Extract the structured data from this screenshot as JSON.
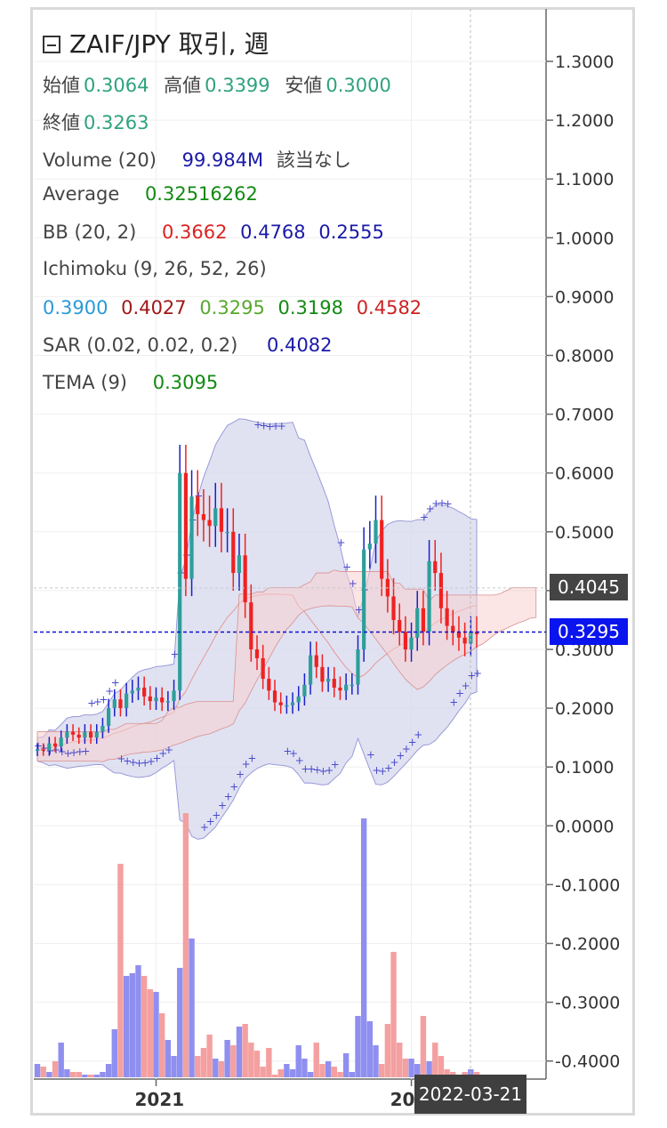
{
  "header": {
    "title": "ZAIF/JPY 取引, 週",
    "open_label": "始値",
    "open": "0.3064",
    "high_label": "高値",
    "high": "0.3399",
    "low_label": "安値",
    "low": "0.3000",
    "close_label": "終値",
    "close": "0.3263"
  },
  "indicators": {
    "volume": {
      "label": "Volume (20)",
      "value": "99.984M",
      "note": "該当なし"
    },
    "average": {
      "label": "Average",
      "value": "0.32516262"
    },
    "bb": {
      "label": "BB (20, 2)",
      "v1": "0.3662",
      "v2": "0.4768",
      "v3": "0.2555"
    },
    "ichimoku": {
      "label": "Ichimoku (9, 26, 52, 26)",
      "v1": "0.3900",
      "v2": "0.4027",
      "v3": "0.3295",
      "v4": "0.3198",
      "v5": "0.4582"
    },
    "sar": {
      "label": "SAR (0.02, 0.02, 0.2)",
      "value": "0.4082"
    },
    "tema": {
      "label": "TEMA (9)",
      "value": "0.3095"
    }
  },
  "colors": {
    "up": "#2e9e9a",
    "down": "#ee2222",
    "bb_fill": "#d6d8ee",
    "sar": "#4a4acc",
    "vol_up": "#8f8ff0",
    "vol_down": "#f4a0a0",
    "cloud_red": "#f7d0d0",
    "cloud_green": "#cfe9cf",
    "last_price_bg": "#0a14ee",
    "ref_price_bg": "#444444",
    "green_text": "#1f9a5a",
    "red_text": "#dd2222",
    "blue_text": "#1a1aa8"
  },
  "tags": {
    "last_price": "0.3295",
    "ref_price": "0.4045",
    "cursor_date": "2022-03-21"
  },
  "chart_data": {
    "type": "candlestick",
    "y_ticks": [
      "1.3000",
      "1.2000",
      "1.1000",
      "1.0000",
      "0.9000",
      "0.8000",
      "0.7000",
      "0.6000",
      "0.5000",
      "0.4000",
      "0.3000",
      "0.2000",
      "0.1000",
      "0.0000",
      "-0.1000",
      "-0.2000",
      "-0.3000",
      "-0.4000"
    ],
    "ylim": [
      -0.43,
      1.33
    ],
    "x_labels": [
      "2021",
      "20"
    ],
    "x_label_weeks": [
      20,
      63
    ],
    "weeks": 75,
    "close": [
      0.13,
      0.128,
      0.14,
      0.135,
      0.15,
      0.16,
      0.155,
      0.15,
      0.16,
      0.15,
      0.16,
      0.17,
      0.2,
      0.215,
      0.2,
      0.225,
      0.23,
      0.235,
      0.22,
      0.212,
      0.218,
      0.21,
      0.212,
      0.23,
      0.6,
      0.42,
      0.56,
      0.53,
      0.52,
      0.51,
      0.54,
      0.5,
      0.5,
      0.43,
      0.46,
      0.38,
      0.3,
      0.285,
      0.25,
      0.23,
      0.21,
      0.205,
      0.205,
      0.21,
      0.22,
      0.24,
      0.29,
      0.27,
      0.245,
      0.25,
      0.235,
      0.23,
      0.24,
      0.24,
      0.3,
      0.47,
      0.48,
      0.52,
      0.42,
      0.39,
      0.35,
      0.33,
      0.3,
      0.32,
      0.37,
      0.33,
      0.45,
      0.43,
      0.37,
      0.34,
      0.33,
      0.32,
      0.31,
      0.33,
      0.326
    ],
    "volume_relative": [
      0.05,
      0.04,
      0.02,
      0.06,
      0.13,
      0.03,
      0.02,
      0.02,
      0.01,
      0.01,
      0.01,
      0.02,
      0.05,
      0.18,
      0.8,
      0.38,
      0.39,
      0.42,
      0.38,
      0.33,
      0.32,
      0.24,
      0.14,
      0.08,
      0.41,
      0.99,
      0.52,
      0.08,
      0.11,
      0.16,
      0.07,
      0.06,
      0.14,
      0.12,
      0.19,
      0.2,
      0.13,
      0.1,
      0.04,
      0.11,
      0.01,
      0.03,
      0.05,
      0.03,
      0.12,
      0.07,
      0.02,
      0.13,
      0.05,
      0.06,
      0.04,
      0.02,
      0.09,
      0.02,
      0.23,
      0.97,
      0.21,
      0.12,
      0.05,
      0.2,
      0.47,
      0.13,
      0.07,
      0.07,
      0.05,
      0.23,
      0.06,
      0.13,
      0.08,
      0.03,
      0.02,
      0.01,
      0.02,
      0.03,
      0.02
    ]
  }
}
